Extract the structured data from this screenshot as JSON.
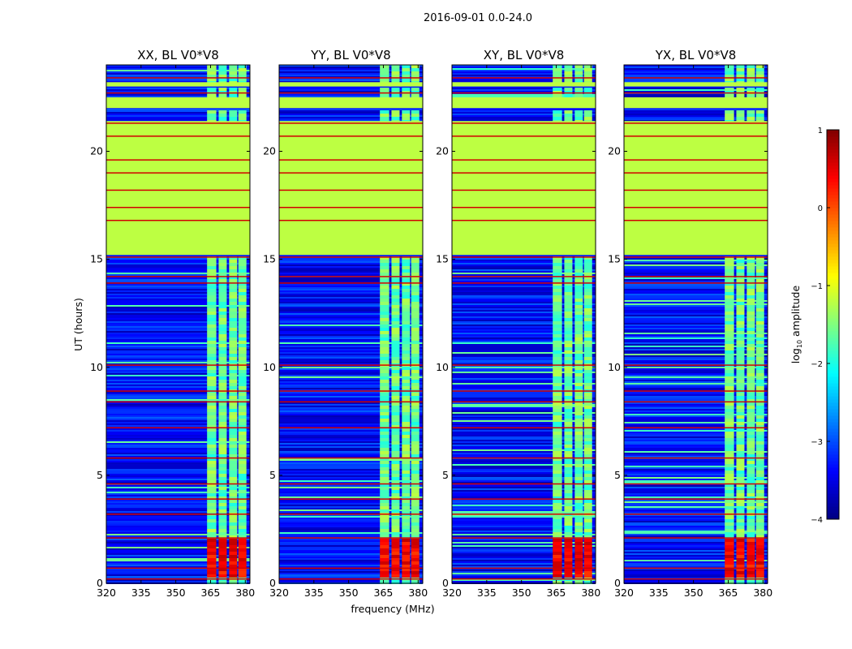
{
  "figure": {
    "suptitle": "2016-09-01 0.0-24.0"
  },
  "chart_data": {
    "type": "heatmap",
    "xlabel": "frequency (MHz)",
    "ylabel": "UT (hours)",
    "xlim": [
      320,
      382
    ],
    "ylim": [
      0,
      24
    ],
    "xticks": [
      320,
      335,
      350,
      365,
      380
    ],
    "xtick_labels": [
      "320",
      "335",
      "350",
      "365",
      "380"
    ],
    "yticks": [
      0,
      5,
      10,
      15,
      20
    ],
    "ytick_labels": [
      "0",
      "5",
      "10",
      "15",
      "20"
    ],
    "panels": [
      {
        "title": "XX, BL V0*V8"
      },
      {
        "title": "YY, BL V0*V8"
      },
      {
        "title": "XY, BL V0*V8"
      },
      {
        "title": "YX, BL V0*V8"
      }
    ],
    "colorbar": {
      "label_pre": "log",
      "label_sub": "10",
      "label_post": " amplitude",
      "range": [
        -4,
        1
      ],
      "ticks": [
        -4,
        -3,
        -2,
        -1,
        0,
        1
      ],
      "tick_labels": [
        "−4",
        "−3",
        "−2",
        "−1",
        "0",
        "1"
      ],
      "colormap": "jet"
    },
    "band_segments_mhz": [
      [
        363.5,
        367.5
      ],
      [
        368.5,
        372.0
      ],
      [
        373.0,
        376.5
      ],
      [
        377.0,
        380.5
      ]
    ],
    "noise_background_log10": -3.3,
    "flagged_fill_log10": -1.2,
    "flagged_blocks_hours": [
      [
        15.2,
        21.4
      ],
      [
        22.0,
        22.5
      ],
      [
        23.0,
        23.2
      ]
    ],
    "strong_signal_hours": [
      0.3,
      2.2
    ],
    "strong_signal_log10": 0.4,
    "band_signal_log10": -1.6,
    "red_flag_lines_hours": [
      0.2,
      0.7,
      2.1,
      3.2,
      3.9,
      4.6,
      5.8,
      7.2,
      8.4,
      8.9,
      10.1,
      13.9,
      14.2,
      15.1,
      16.8,
      17.4,
      18.2,
      19.0,
      19.6,
      20.7,
      21.3,
      22.7,
      23.4
    ]
  }
}
